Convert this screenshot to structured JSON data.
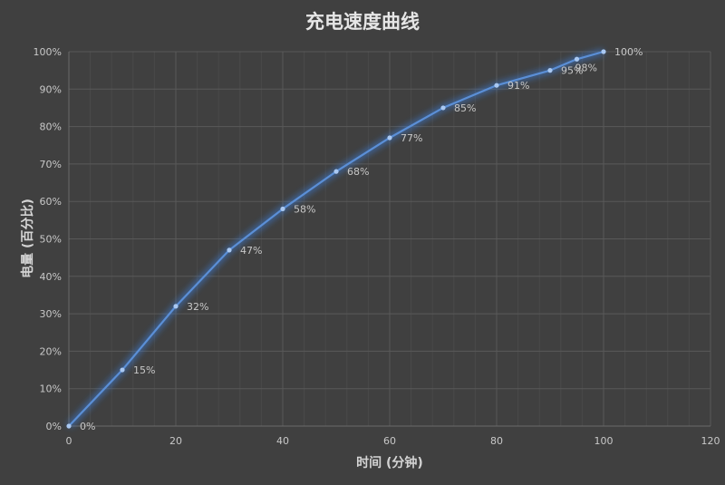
{
  "chart_data": {
    "type": "line",
    "title": "充电速度曲线",
    "xlabel": "时间 (分钟)",
    "ylabel": "电量 (百分比)",
    "xlim": [
      0,
      120
    ],
    "ylim": [
      0,
      100
    ],
    "xticks": [
      0,
      20,
      40,
      60,
      80,
      100,
      120
    ],
    "yticks": [
      "0%",
      "10%",
      "20%",
      "30%",
      "40%",
      "50%",
      "60%",
      "70%",
      "80%",
      "90%",
      "100%"
    ],
    "grid": true,
    "legend": "none",
    "series": [
      {
        "name": "电量",
        "color": "#5b8fd6",
        "x": [
          0,
          10,
          20,
          30,
          40,
          50,
          60,
          70,
          80,
          90,
          95,
          100
        ],
        "values": [
          0,
          15,
          32,
          47,
          58,
          68,
          77,
          85,
          91,
          95,
          98,
          100
        ],
        "labels": [
          "0%",
          "15%",
          "32%",
          "47%",
          "58%",
          "68%",
          "77%",
          "85%",
          "91%",
          "95%",
          "98%",
          "100%"
        ]
      }
    ]
  },
  "colors": {
    "background": "#404040",
    "grid_major": "#595959",
    "grid_minor": "#4a4a4a",
    "line": "#5b8fd6",
    "glow": "#3d7fe0"
  }
}
